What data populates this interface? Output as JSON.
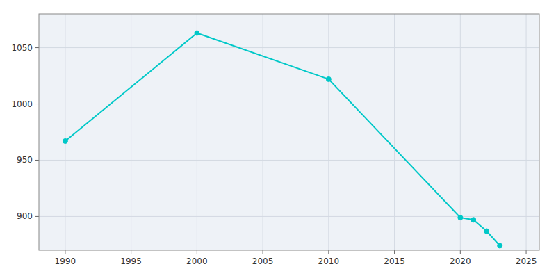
{
  "chart_data": {
    "type": "line",
    "x": [
      1990,
      2000,
      2010,
      2020,
      2021,
      2022,
      2023
    ],
    "values": [
      967,
      1063,
      1022,
      899,
      897,
      887,
      874
    ],
    "color": "#00C8C8",
    "marker": "circle",
    "xlim": [
      1988,
      2026
    ],
    "ylim": [
      870,
      1080
    ],
    "xticks": [
      1990,
      1995,
      2000,
      2005,
      2010,
      2015,
      2020,
      2025
    ],
    "yticks": [
      900,
      950,
      1000,
      1050
    ],
    "grid": true
  }
}
